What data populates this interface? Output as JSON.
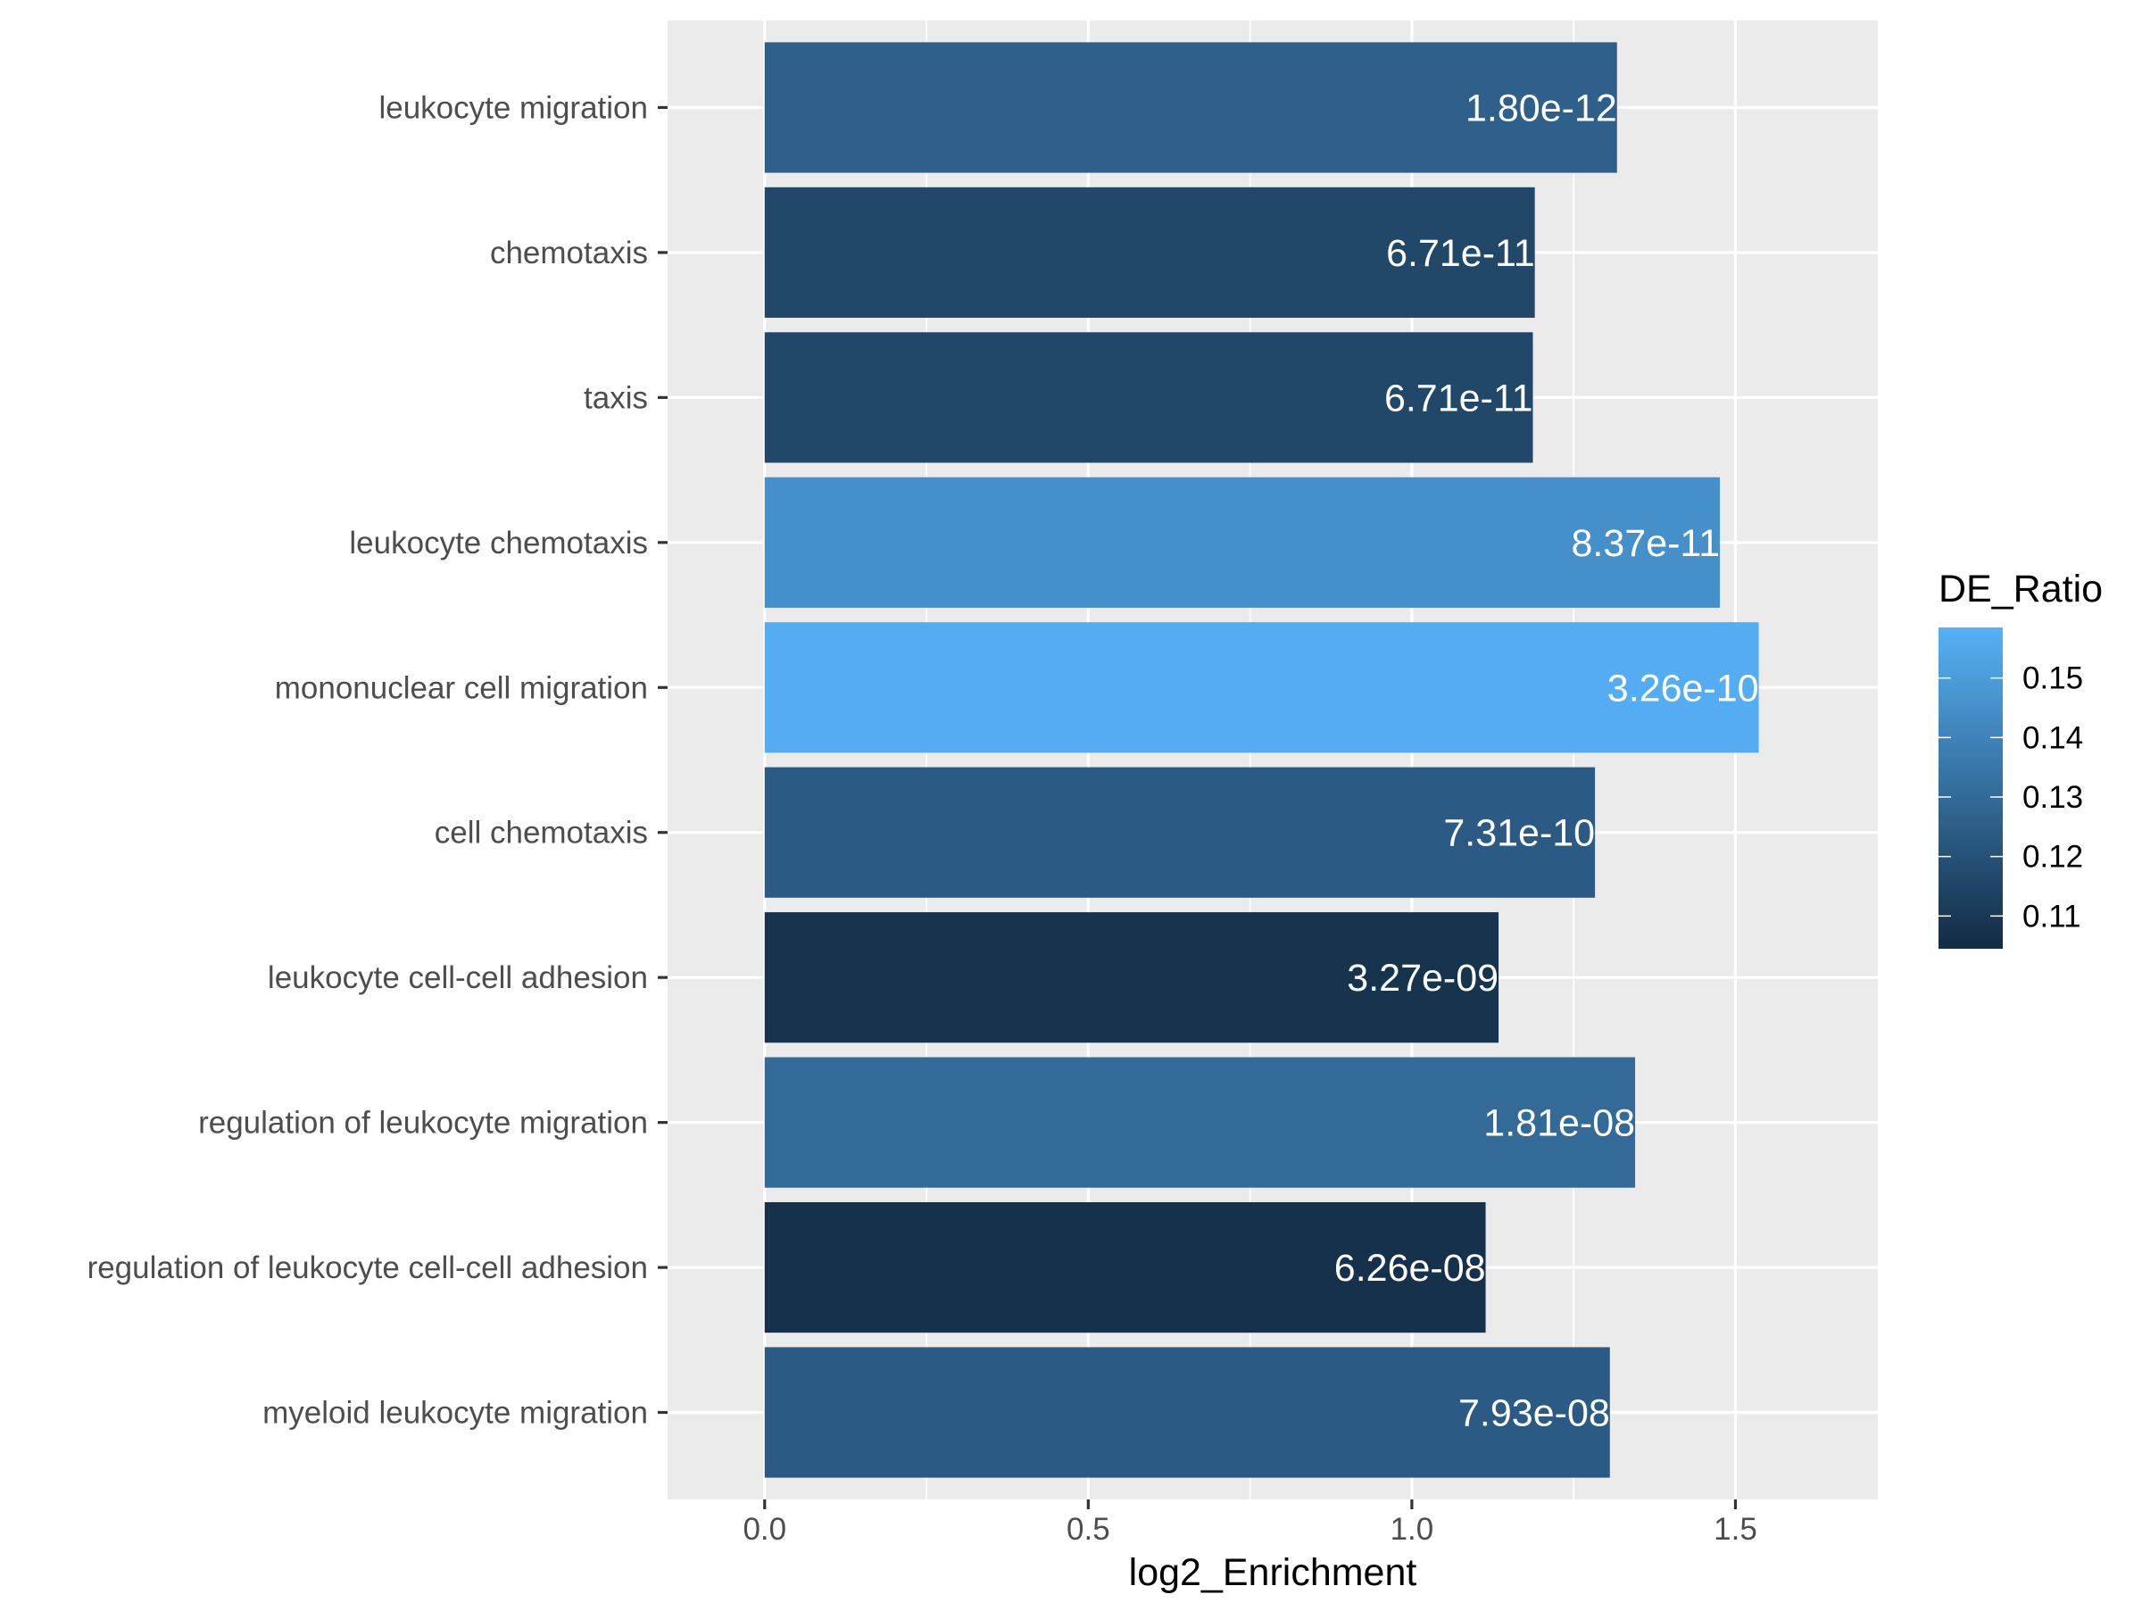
{
  "chart_data": {
    "type": "bar",
    "orientation": "horizontal",
    "title": "",
    "xlabel": "log2_Enrichment",
    "ylabel": "",
    "xlim": [
      -0.15,
      1.72
    ],
    "xticks": [
      {
        "value": 0.0,
        "label": "0.0"
      },
      {
        "value": 0.5,
        "label": "0.5"
      },
      {
        "value": 1.0,
        "label": "1.0"
      },
      {
        "value": 1.5,
        "label": "1.5"
      }
    ],
    "grid": true,
    "categories": [
      "leukocyte migration",
      "chemotaxis",
      "taxis",
      "leukocyte chemotaxis",
      "mononuclear cell migration",
      "cell chemotaxis",
      "leukocyte cell-cell adhesion",
      "regulation of leukocyte migration",
      "regulation of leukocyte cell-cell adhesion",
      "myeloid leukocyte migration"
    ],
    "values": [
      1.317,
      1.19,
      1.187,
      1.476,
      1.536,
      1.283,
      1.134,
      1.345,
      1.114,
      1.306
    ],
    "bar_labels": [
      "1.80e-12",
      "6.71e-11",
      "6.71e-11",
      "8.37e-11",
      "3.26e-10",
      "7.31e-10",
      "3.27e-09",
      "1.81e-08",
      "6.26e-08",
      "7.93e-08"
    ],
    "fill_values": [
      0.126,
      0.116,
      0.116,
      0.145,
      0.157,
      0.124,
      0.108,
      0.13,
      0.107,
      0.124
    ],
    "legend": {
      "title": "DE_Ratio",
      "position": "right",
      "range": [
        0.1045,
        0.1585
      ],
      "ticks": [
        {
          "value": 0.15,
          "label": "0.15"
        },
        {
          "value": 0.14,
          "label": "0.14"
        },
        {
          "value": 0.13,
          "label": "0.13"
        },
        {
          "value": 0.12,
          "label": "0.12"
        },
        {
          "value": 0.11,
          "label": "0.11"
        }
      ],
      "color_low": "#132B43",
      "color_high": "#56B1F7"
    },
    "panel_color": "#EBEBEB",
    "grid_color": "#FFFFFF"
  }
}
